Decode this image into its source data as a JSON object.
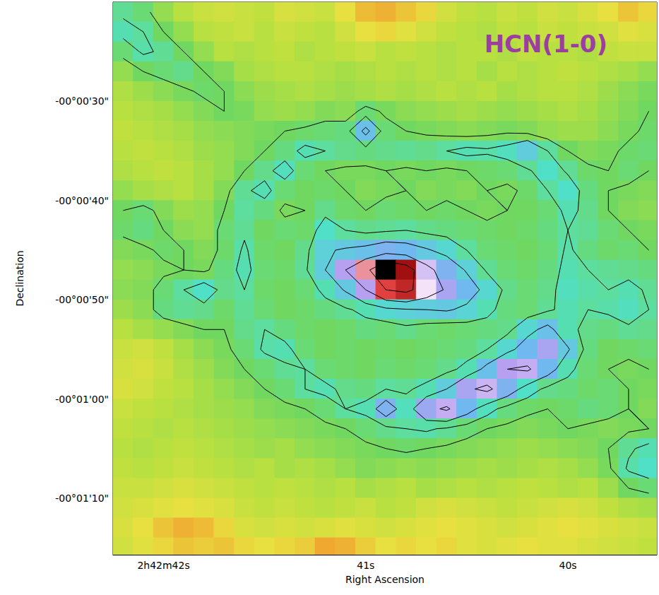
{
  "chart_data": {
    "type": "heatmap",
    "title": "HCN(1-0)",
    "x_label": "Right Ascension",
    "y_label": "Declination",
    "x": [
      42.2,
      42.1,
      42.0,
      41.9,
      41.8,
      41.7,
      41.6,
      41.5,
      41.4,
      41.3,
      41.2,
      41.1,
      41.0,
      40.9,
      40.8,
      40.7,
      40.6,
      40.5,
      40.4,
      40.3,
      40.2,
      40.1,
      40.0,
      39.9,
      39.8,
      39.7,
      39.6
    ],
    "y": [
      -21,
      -23,
      -25,
      -27,
      -29,
      -31,
      -33,
      -35,
      -37,
      -39,
      -41,
      -43,
      -45,
      -47,
      -49,
      -51,
      -53,
      -55,
      -57,
      -59,
      -61,
      -63,
      -65,
      -67,
      -69,
      -71,
      -73,
      -75
    ],
    "cells": [
      [
        3.5,
        3.2,
        2.6,
        2.2,
        2.0,
        1.9,
        2.0,
        2.1,
        1.8,
        1.9,
        2.0,
        1.6,
        1.2,
        1.1,
        1.3,
        1.5,
        1.9,
        2.1,
        2.2,
        2.0,
        2.1,
        1.9,
        2.0,
        1.8,
        1.6,
        1.3,
        1.5
      ],
      [
        3.8,
        3.6,
        3.0,
        2.6,
        2.2,
        2.1,
        2.0,
        2.2,
        2.0,
        2.1,
        2.2,
        1.9,
        1.6,
        1.5,
        1.7,
        1.9,
        2.1,
        2.2,
        2.3,
        2.1,
        2.2,
        2.0,
        2.1,
        2.0,
        1.9,
        1.7,
        1.8
      ],
      [
        3.2,
        3.7,
        3.5,
        3.0,
        2.6,
        2.2,
        2.3,
        2.2,
        2.1,
        2.3,
        2.2,
        2.1,
        2.0,
        2.2,
        2.1,
        2.2,
        2.3,
        2.2,
        2.2,
        2.3,
        2.1,
        2.2,
        2.2,
        2.3,
        2.1,
        2.0,
        2.0
      ],
      [
        2.6,
        3.0,
        3.2,
        3.4,
        3.0,
        2.8,
        2.4,
        2.3,
        2.2,
        2.2,
        2.3,
        2.4,
        2.3,
        2.2,
        2.3,
        2.2,
        2.3,
        2.2,
        2.4,
        2.2,
        2.3,
        2.2,
        2.1,
        2.2,
        2.3,
        2.4,
        2.6
      ],
      [
        2.3,
        2.5,
        2.7,
        2.9,
        3.1,
        3.0,
        2.7,
        2.5,
        2.4,
        2.3,
        2.4,
        2.5,
        2.4,
        2.3,
        2.4,
        2.3,
        2.2,
        2.3,
        2.2,
        2.4,
        2.3,
        2.2,
        2.2,
        2.3,
        2.5,
        2.7,
        2.9
      ],
      [
        2.2,
        2.3,
        2.4,
        2.6,
        2.8,
        3.0,
        2.9,
        2.6,
        2.5,
        2.6,
        2.8,
        2.7,
        3.2,
        2.9,
        2.7,
        2.6,
        2.5,
        2.4,
        2.5,
        2.6,
        2.5,
        2.4,
        2.3,
        2.4,
        2.6,
        2.8,
        3.0
      ],
      [
        2.1,
        2.2,
        2.3,
        2.4,
        2.6,
        2.7,
        2.8,
        2.9,
        3.0,
        3.1,
        3.2,
        3.3,
        4.8,
        3.2,
        3.0,
        2.9,
        2.8,
        2.7,
        2.8,
        2.9,
        2.8,
        2.6,
        2.5,
        2.5,
        2.7,
        2.9,
        3.1
      ],
      [
        2.2,
        2.1,
        2.2,
        2.3,
        2.5,
        2.6,
        2.8,
        3.0,
        3.3,
        3.8,
        3.6,
        3.4,
        3.3,
        3.4,
        3.5,
        3.4,
        3.6,
        3.8,
        3.7,
        3.9,
        4.5,
        3.6,
        3.0,
        2.8,
        2.9,
        3.1,
        3.2
      ],
      [
        2.3,
        2.2,
        2.1,
        2.2,
        2.4,
        2.6,
        3.0,
        3.4,
        3.9,
        3.2,
        3.0,
        2.9,
        2.9,
        3.0,
        2.9,
        3.0,
        2.9,
        3.0,
        3.1,
        3.2,
        3.5,
        4.0,
        3.5,
        3.1,
        3.0,
        3.2,
        3.0
      ],
      [
        2.6,
        2.4,
        2.3,
        2.2,
        2.4,
        2.8,
        3.5,
        3.8,
        3.2,
        3.0,
        3.1,
        3.0,
        2.8,
        2.9,
        3.0,
        2.8,
        2.9,
        2.8,
        3.0,
        2.9,
        3.1,
        3.6,
        4.0,
        3.3,
        3.0,
        2.9,
        2.8
      ],
      [
        3.0,
        3.2,
        2.8,
        2.5,
        2.6,
        3.0,
        3.6,
        3.3,
        2.9,
        3.0,
        3.4,
        3.1,
        3.0,
        3.2,
        3.1,
        3.0,
        3.1,
        3.0,
        2.9,
        3.0,
        3.0,
        3.2,
        3.8,
        3.4,
        3.0,
        2.8,
        2.7
      ],
      [
        3.1,
        3.3,
        3.0,
        2.7,
        2.6,
        3.2,
        3.5,
        3.0,
        3.2,
        3.1,
        4.0,
        3.6,
        3.4,
        3.5,
        3.6,
        3.4,
        3.3,
        3.2,
        3.1,
        3.0,
        3.1,
        3.3,
        3.6,
        3.5,
        3.2,
        3.0,
        2.9
      ],
      [
        2.8,
        2.9,
        3.1,
        3.0,
        2.8,
        3.1,
        3.7,
        3.1,
        3.0,
        3.4,
        4.4,
        4.6,
        4.8,
        5.2,
        5.0,
        4.6,
        4.2,
        3.6,
        3.2,
        3.1,
        3.0,
        3.2,
        3.7,
        3.3,
        3.1,
        3.2,
        3.0
      ],
      [
        2.6,
        2.7,
        2.9,
        3.0,
        2.9,
        3.3,
        3.8,
        3.2,
        3.1,
        3.5,
        4.5,
        6.0,
        7.5,
        10,
        9.0,
        6.5,
        5.2,
        4.4,
        3.5,
        3.2,
        3.1,
        3.3,
        3.8,
        3.6,
        3.5,
        3.4,
        3.3
      ],
      [
        2.7,
        2.8,
        3.2,
        3.6,
        4.0,
        3.4,
        3.6,
        3.1,
        3.0,
        3.2,
        3.8,
        4.6,
        6.0,
        8.0,
        8.5,
        7.0,
        5.8,
        5.0,
        4.2,
        3.4,
        3.2,
        3.4,
        3.9,
        3.7,
        3.6,
        3.8,
        3.5
      ],
      [
        2.5,
        2.7,
        3.3,
        3.5,
        3.4,
        3.1,
        3.5,
        3.2,
        3.0,
        3.1,
        3.3,
        3.5,
        3.8,
        4.2,
        4.4,
        4.5,
        4.6,
        4.3,
        3.8,
        3.3,
        3.2,
        3.5,
        3.8,
        3.6,
        3.7,
        3.9,
        3.6
      ],
      [
        2.2,
        2.4,
        2.6,
        2.8,
        3.0,
        3.0,
        3.4,
        3.6,
        3.3,
        3.1,
        3.0,
        3.1,
        3.3,
        3.2,
        3.4,
        3.2,
        3.1,
        3.2,
        3.3,
        3.4,
        4.2,
        4.8,
        3.8,
        3.4,
        3.3,
        3.5,
        3.4
      ],
      [
        2.0,
        1.9,
        2.1,
        2.4,
        2.7,
        2.9,
        3.2,
        3.7,
        3.8,
        3.2,
        3.0,
        3.1,
        3.0,
        3.1,
        3.0,
        3.1,
        3.2,
        3.3,
        3.6,
        4.2,
        5.0,
        5.8,
        4.6,
        3.3,
        3.0,
        3.1,
        3.2
      ],
      [
        1.9,
        1.8,
        2.0,
        2.3,
        2.5,
        2.8,
        3.0,
        3.2,
        3.5,
        3.6,
        3.2,
        3.1,
        3.0,
        3.2,
        3.1,
        3.2,
        3.4,
        3.8,
        4.8,
        6.0,
        6.2,
        5.0,
        3.8,
        3.2,
        3.0,
        2.9,
        3.0
      ],
      [
        1.8,
        1.9,
        2.1,
        2.2,
        2.4,
        2.6,
        2.8,
        3.0,
        3.2,
        3.6,
        3.8,
        3.4,
        3.3,
        3.6,
        3.5,
        3.8,
        4.5,
        5.8,
        6.3,
        5.2,
        4.0,
        3.4,
        3.3,
        3.1,
        3.2,
        3.0,
        2.9
      ],
      [
        2.0,
        2.1,
        2.2,
        2.3,
        2.4,
        2.5,
        2.6,
        2.8,
        2.9,
        3.0,
        3.2,
        3.6,
        3.8,
        5.2,
        3.9,
        5.6,
        6.2,
        5.0,
        3.9,
        3.3,
        3.1,
        3.0,
        3.1,
        3.3,
        3.2,
        3.0,
        2.8
      ],
      [
        2.1,
        2.2,
        2.3,
        2.2,
        2.3,
        2.4,
        2.5,
        2.6,
        2.7,
        2.8,
        2.9,
        3.0,
        3.2,
        3.4,
        3.6,
        3.7,
        3.5,
        3.2,
        3.0,
        2.9,
        2.8,
        2.9,
        3.0,
        2.9,
        2.8,
        2.9,
        3.0
      ],
      [
        2.2,
        2.3,
        2.2,
        2.1,
        2.2,
        2.3,
        2.4,
        2.5,
        2.4,
        2.6,
        2.7,
        2.8,
        2.9,
        3.0,
        3.1,
        3.0,
        2.9,
        2.8,
        2.7,
        2.6,
        2.5,
        2.6,
        2.7,
        2.8,
        3.0,
        3.5,
        3.8
      ],
      [
        2.1,
        2.2,
        2.1,
        2.0,
        2.1,
        2.2,
        2.3,
        2.2,
        2.4,
        2.3,
        2.4,
        2.6,
        2.8,
        2.7,
        2.6,
        2.7,
        2.6,
        2.5,
        2.4,
        2.5,
        2.4,
        2.3,
        2.4,
        2.6,
        2.9,
        3.7,
        4.0
      ],
      [
        2.0,
        2.0,
        1.9,
        1.8,
        1.9,
        2.0,
        2.1,
        2.2,
        2.1,
        2.2,
        2.3,
        2.2,
        2.4,
        2.3,
        2.2,
        2.4,
        2.3,
        2.2,
        2.3,
        2.2,
        2.1,
        2.2,
        2.3,
        2.2,
        2.5,
        3.0,
        3.2
      ],
      [
        1.9,
        1.8,
        1.7,
        1.6,
        1.7,
        1.8,
        2.0,
        2.1,
        2.0,
        2.1,
        2.2,
        2.1,
        2.0,
        2.2,
        2.1,
        1.9,
        1.8,
        1.9,
        2.0,
        2.1,
        2.0,
        1.9,
        1.8,
        1.9,
        2.1,
        2.3,
        2.4
      ],
      [
        1.8,
        1.6,
        1.3,
        1.1,
        1.2,
        1.5,
        1.8,
        1.9,
        1.8,
        1.9,
        1.8,
        1.7,
        1.8,
        1.9,
        1.8,
        1.7,
        1.6,
        1.7,
        1.8,
        1.9,
        1.8,
        1.7,
        1.6,
        1.7,
        1.8,
        1.9,
        2.0
      ],
      [
        1.9,
        1.7,
        1.5,
        1.3,
        1.4,
        1.3,
        1.5,
        1.6,
        1.5,
        1.4,
        1.0,
        1.1,
        1.4,
        1.6,
        1.5,
        1.6,
        1.5,
        1.7,
        1.8,
        1.7,
        1.6,
        1.7,
        1.7,
        1.8,
        1.9,
        2.0,
        2.1
      ]
    ],
    "zlim": [
      0,
      10
    ],
    "contour_levels": [
      3,
      3.6,
      4.5,
      6,
      8
    ],
    "xlim": [
      42.25,
      39.56
    ],
    "ylim": [
      -75.7,
      -20
    ],
    "xticks": [
      {
        "value": 42,
        "label": "2h42m42s"
      },
      {
        "value": 41,
        "label": "41s"
      },
      {
        "value": 40,
        "label": "40s"
      }
    ],
    "yticks": [
      {
        "value": -70,
        "label": "-00°01'10\""
      },
      {
        "value": -60,
        "label": "-00°01'00\""
      },
      {
        "value": -50,
        "label": "-00°00'50\""
      },
      {
        "value": -40,
        "label": "-00°00'40\""
      },
      {
        "value": -30,
        "label": "-00°00'30\""
      }
    ],
    "grid": false
  }
}
